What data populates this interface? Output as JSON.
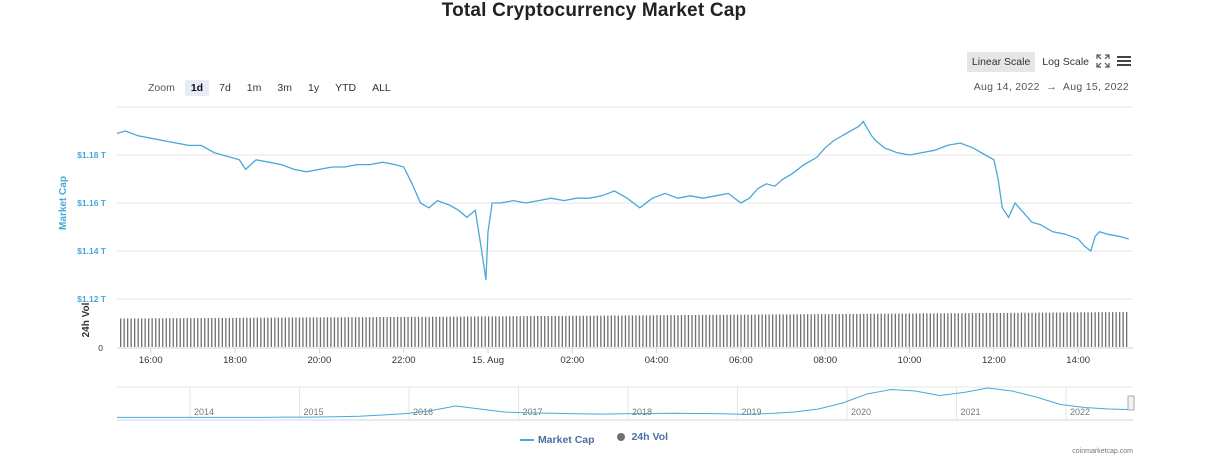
{
  "title": "Total Cryptocurrency Market Cap",
  "zoom": {
    "label": "Zoom",
    "buttons": [
      "1d",
      "7d",
      "1m",
      "3m",
      "1y",
      "YTD",
      "ALL"
    ],
    "active": "1d"
  },
  "scale": {
    "linear_label": "Linear Scale",
    "log_label": "Log Scale",
    "active": "linear"
  },
  "icons": {
    "fullscreen": "fullscreen-icon",
    "menu": "menu-icon"
  },
  "date_range": {
    "from": "Aug 14, 2022",
    "separator": "→",
    "to": "Aug 15, 2022"
  },
  "watermark": "coinmarketcap.com",
  "legend": {
    "market_cap": "Market Cap",
    "vol": "24h Vol"
  },
  "colors": {
    "line": "#4aa8d8",
    "volume": "#707070",
    "axis_text": "#4aa8d8",
    "navigator_line": "#4aa8d8"
  },
  "chart_data": {
    "type": "line",
    "ylabel": "Market Cap",
    "ylabel_vol": "24h Vol",
    "y_ticks": [
      "$1.12 T",
      "$1.14 T",
      "$1.16 T",
      "$1.18 T"
    ],
    "y_tick_values": [
      1.12,
      1.14,
      1.16,
      1.18
    ],
    "vol_tick": "0",
    "x_ticks": [
      "16:00",
      "18:00",
      "20:00",
      "22:00",
      "15. Aug",
      "02:00",
      "04:00",
      "06:00",
      "08:00",
      "10:00",
      "12:00",
      "14:00"
    ],
    "x_tick_hours": [
      16,
      18,
      20,
      22,
      24,
      26,
      28,
      30,
      32,
      34,
      36,
      38
    ],
    "xlim_hours": [
      15.2,
      39.3
    ],
    "ylim": [
      1.12,
      1.2
    ],
    "grid": true,
    "series": [
      {
        "name": "Market Cap",
        "x_hours": [
          15.2,
          15.4,
          15.7,
          16.0,
          16.3,
          16.6,
          16.9,
          17.2,
          17.5,
          17.7,
          17.9,
          18.1,
          18.25,
          18.5,
          18.8,
          19.1,
          19.4,
          19.7,
          20.0,
          20.3,
          20.6,
          20.9,
          21.2,
          21.5,
          21.8,
          22.0,
          22.2,
          22.4,
          22.6,
          22.8,
          22.95,
          23.1,
          23.3,
          23.5,
          23.7,
          23.85,
          23.95,
          24.0,
          24.1,
          24.3,
          24.6,
          24.9,
          25.2,
          25.5,
          25.8,
          26.1,
          26.4,
          26.7,
          27.0,
          27.3,
          27.6,
          27.9,
          28.2,
          28.5,
          28.8,
          29.1,
          29.4,
          29.7,
          30.0,
          30.2,
          30.4,
          30.6,
          30.8,
          31.0,
          31.2,
          31.5,
          31.8,
          32.0,
          32.2,
          32.4,
          32.6,
          32.8,
          32.9,
          33.0,
          33.1,
          33.2,
          33.4,
          33.7,
          34.0,
          34.3,
          34.6,
          34.9,
          35.2,
          35.5,
          35.8,
          36.0,
          36.1,
          36.2,
          36.35,
          36.5,
          36.7,
          36.9,
          37.1,
          37.4,
          37.7,
          38.0,
          38.15,
          38.3,
          38.4,
          38.5,
          38.7,
          39.0,
          39.2
        ],
        "values": [
          1.189,
          1.19,
          1.188,
          1.187,
          1.186,
          1.185,
          1.184,
          1.184,
          1.181,
          1.18,
          1.179,
          1.178,
          1.174,
          1.178,
          1.177,
          1.176,
          1.174,
          1.173,
          1.174,
          1.175,
          1.175,
          1.176,
          1.176,
          1.177,
          1.176,
          1.175,
          1.168,
          1.16,
          1.158,
          1.161,
          1.16,
          1.159,
          1.157,
          1.154,
          1.157,
          1.14,
          1.128,
          1.148,
          1.16,
          1.16,
          1.161,
          1.16,
          1.161,
          1.162,
          1.161,
          1.162,
          1.162,
          1.163,
          1.165,
          1.162,
          1.158,
          1.162,
          1.164,
          1.162,
          1.163,
          1.162,
          1.163,
          1.164,
          1.16,
          1.162,
          1.166,
          1.168,
          1.167,
          1.17,
          1.172,
          1.176,
          1.179,
          1.183,
          1.186,
          1.188,
          1.19,
          1.192,
          1.194,
          1.191,
          1.188,
          1.186,
          1.183,
          1.181,
          1.18,
          1.181,
          1.182,
          1.184,
          1.185,
          1.183,
          1.18,
          1.178,
          1.17,
          1.158,
          1.154,
          1.16,
          1.156,
          1.152,
          1.151,
          1.148,
          1.147,
          1.145,
          1.142,
          1.14,
          1.146,
          1.148,
          1.147,
          1.146,
          1.145
        ]
      },
      {
        "name": "24h Vol",
        "values_description_free": true,
        "relative_volume": [
          0.75,
          0.8,
          0.86,
          0.92
        ]
      }
    ]
  },
  "navigator": {
    "years": [
      "2014",
      "2015",
      "2016",
      "2017",
      "2018",
      "2019",
      "2020",
      "2021",
      "2022"
    ],
    "relative_values": [
      0.02,
      0.02,
      0.02,
      0.02,
      0.02,
      0.02,
      0.02,
      0.03,
      0.03,
      0.04,
      0.06,
      0.1,
      0.15,
      0.25,
      0.4,
      0.3,
      0.2,
      0.17,
      0.16,
      0.14,
      0.13,
      0.14,
      0.15,
      0.16,
      0.15,
      0.14,
      0.12,
      0.15,
      0.2,
      0.3,
      0.5,
      0.8,
      0.95,
      0.9,
      0.75,
      0.85,
      1.0,
      0.9,
      0.7,
      0.45,
      0.35,
      0.3,
      0.28
    ]
  }
}
